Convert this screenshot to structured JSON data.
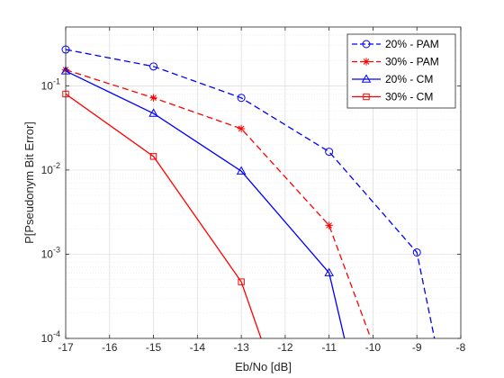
{
  "chart_data": {
    "type": "line",
    "xlabel": "Eb/No [dB]",
    "ylabel": "P[Pseudonym Bit Error]",
    "xlim": [
      -17,
      -8
    ],
    "ylim": [
      0.0001,
      0.5
    ],
    "yscale": "log",
    "x_ticks": [
      -17,
      -16,
      -15,
      -14,
      -13,
      -12,
      -11,
      -10,
      -9,
      -8
    ],
    "x_tick_labels": [
      "-17",
      "-16",
      "-15",
      "-14",
      "-13",
      "-12",
      "-11",
      "-10",
      "-9",
      "-8"
    ],
    "y_ticks": [
      {
        "value": 0.0001,
        "base": "10",
        "exp": "-4"
      },
      {
        "value": 0.001,
        "base": "10",
        "exp": "-3"
      },
      {
        "value": 0.01,
        "base": "10",
        "exp": "-2"
      },
      {
        "value": 0.1,
        "base": "10",
        "exp": "-1"
      }
    ],
    "grid": true,
    "minor_grid": true,
    "legend_position": "top-right",
    "series": [
      {
        "name": "20% - PAM",
        "color": "#0000ff",
        "line": "dashed",
        "marker": "circle",
        "x": [
          -17,
          -15,
          -13,
          -11,
          -9,
          -8.6
        ],
        "y": [
          0.27,
          0.17,
          0.072,
          0.0165,
          0.00105,
          0.0001
        ],
        "marked": [
          true,
          true,
          true,
          true,
          true,
          false
        ]
      },
      {
        "name": "30% - PAM",
        "color": "#ff0000",
        "line": "dashed",
        "marker": "asterisk",
        "x": [
          -17,
          -15,
          -13,
          -11,
          -10.05
        ],
        "y": [
          0.155,
          0.072,
          0.031,
          0.0022,
          0.0001
        ],
        "marked": [
          true,
          true,
          true,
          true,
          false
        ]
      },
      {
        "name": "20% - CM",
        "color": "#0000ff",
        "line": "solid",
        "marker": "triangle",
        "x": [
          -17,
          -15,
          -13,
          -11,
          -10.65
        ],
        "y": [
          0.15,
          0.047,
          0.0097,
          0.0006,
          0.0001
        ],
        "marked": [
          true,
          true,
          true,
          true,
          false
        ]
      },
      {
        "name": "30% - CM",
        "color": "#ff0000",
        "line": "solid",
        "marker": "square",
        "x": [
          -17,
          -15,
          -13,
          -12.55
        ],
        "y": [
          0.08,
          0.0145,
          0.00047,
          0.0001
        ],
        "marked": [
          true,
          true,
          true,
          false
        ]
      }
    ]
  }
}
